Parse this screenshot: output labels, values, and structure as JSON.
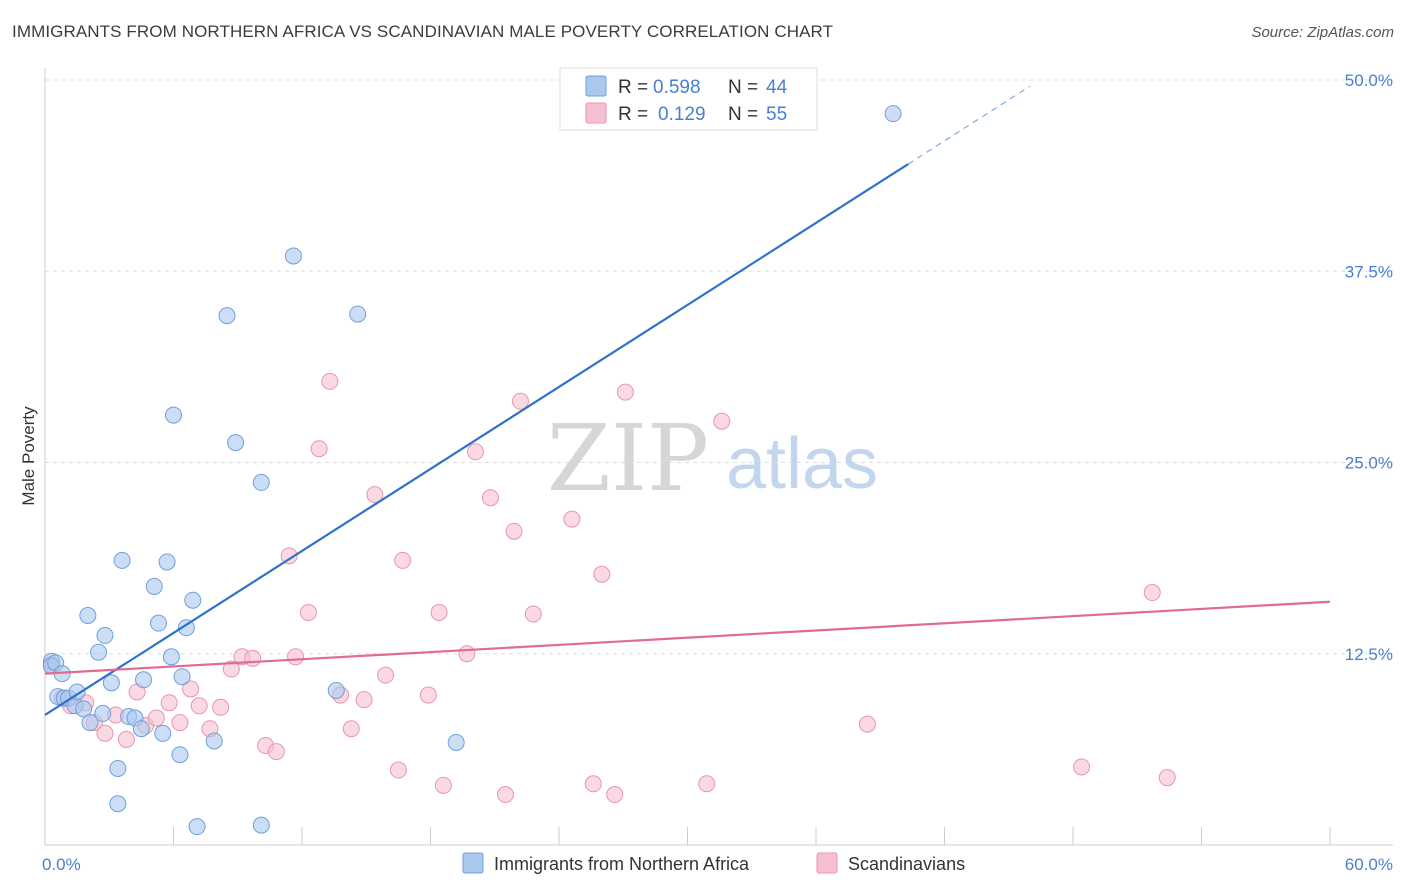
{
  "header": {
    "title": "IMMIGRANTS FROM NORTHERN AFRICA VS SCANDINAVIAN MALE POVERTY CORRELATION CHART",
    "source": "Source: ZipAtlas.com"
  },
  "watermark": {
    "zip": "ZIP",
    "atlas": "atlas"
  },
  "colors": {
    "blue_fill": "#aac8ee",
    "blue_stroke": "#6fa0da",
    "blue_line": "#2f72c9",
    "pink_fill": "#f6c0d0",
    "pink_stroke": "#e896b0",
    "pink_line": "#e06b93",
    "axis_text": "#4a7fce",
    "grid": "#dddddd"
  },
  "legend_top": {
    "rows": [
      {
        "r_label": "R =",
        "r_value": "0.598",
        "n_label": "N =",
        "n_value": "44"
      },
      {
        "r_label": "R =",
        "r_value": "0.129",
        "n_label": "N =",
        "n_value": "55"
      }
    ]
  },
  "legend_bottom": {
    "items": [
      {
        "label": "Immigrants from Northern Africa"
      },
      {
        "label": "Scandinavians"
      }
    ]
  },
  "chart_data": {
    "type": "scatter",
    "title": "IMMIGRANTS FROM NORTHERN AFRICA VS SCANDINAVIAN MALE POVERTY CORRELATION CHART",
    "xlabel": "",
    "ylabel": "Male Poverty",
    "xlim": [
      0,
      60
    ],
    "ylim": [
      0,
      50
    ],
    "x_tick_labels": [
      "0.0%",
      "60.0%"
    ],
    "y_ticks": [
      12.5,
      25.0,
      37.5,
      50.0
    ],
    "y_tick_labels": [
      "12.5%",
      "25.0%",
      "37.5%",
      "50.0%"
    ],
    "grid": true,
    "series": [
      {
        "name": "Immigrants from Northern Africa",
        "stats": {
          "R": 0.598,
          "N": 44
        },
        "trend": {
          "x0": 0,
          "y0": 8.5,
          "x1": 40.3,
          "y1": 44.5,
          "dashed_to_x": 46.0,
          "dashed_to_y": 49.6
        },
        "points": [
          [
            0.3,
            12.0
          ],
          [
            0.3,
            11.7
          ],
          [
            0.5,
            11.9
          ],
          [
            0.8,
            11.2
          ],
          [
            0.6,
            9.7
          ],
          [
            0.9,
            9.6
          ],
          [
            1.1,
            9.6
          ],
          [
            1.4,
            9.1
          ],
          [
            1.5,
            10.0
          ],
          [
            1.8,
            8.9
          ],
          [
            2.1,
            8.0
          ],
          [
            2.7,
            8.6
          ],
          [
            2.0,
            15.0
          ],
          [
            2.5,
            12.6
          ],
          [
            2.8,
            13.7
          ],
          [
            3.1,
            10.6
          ],
          [
            3.6,
            18.6
          ],
          [
            3.4,
            5.0
          ],
          [
            3.4,
            2.7
          ],
          [
            3.9,
            8.4
          ],
          [
            4.2,
            8.3
          ],
          [
            4.5,
            7.6
          ],
          [
            4.6,
            10.8
          ],
          [
            5.1,
            16.9
          ],
          [
            5.3,
            14.5
          ],
          [
            5.5,
            7.3
          ],
          [
            5.7,
            18.5
          ],
          [
            5.9,
            12.3
          ],
          [
            6.0,
            28.1
          ],
          [
            6.3,
            5.9
          ],
          [
            6.4,
            11.0
          ],
          [
            6.6,
            14.2
          ],
          [
            6.9,
            16.0
          ],
          [
            7.1,
            1.2
          ],
          [
            7.9,
            6.8
          ],
          [
            8.5,
            34.6
          ],
          [
            8.9,
            26.3
          ],
          [
            10.1,
            23.7
          ],
          [
            10.1,
            1.3
          ],
          [
            11.6,
            38.5
          ],
          [
            13.6,
            10.1
          ],
          [
            14.6,
            34.7
          ],
          [
            19.2,
            6.7
          ],
          [
            39.6,
            47.8
          ]
        ]
      },
      {
        "name": "Scandinavians",
        "stats": {
          "R": 0.129,
          "N": 55
        },
        "trend": {
          "x0": 0,
          "y0": 11.2,
          "x1": 60,
          "y1": 15.9
        },
        "points": [
          [
            0.3,
            11.8
          ],
          [
            0.8,
            9.6
          ],
          [
            1.2,
            9.1
          ],
          [
            1.9,
            9.3
          ],
          [
            2.3,
            8.0
          ],
          [
            2.8,
            7.3
          ],
          [
            3.3,
            8.5
          ],
          [
            3.8,
            6.9
          ],
          [
            4.3,
            10.0
          ],
          [
            4.7,
            7.8
          ],
          [
            5.2,
            8.3
          ],
          [
            5.8,
            9.3
          ],
          [
            6.3,
            8.0
          ],
          [
            6.8,
            10.2
          ],
          [
            7.2,
            9.1
          ],
          [
            7.7,
            7.6
          ],
          [
            8.2,
            9.0
          ],
          [
            8.7,
            11.5
          ],
          [
            9.2,
            12.3
          ],
          [
            9.7,
            12.2
          ],
          [
            10.3,
            6.5
          ],
          [
            10.8,
            6.1
          ],
          [
            11.4,
            18.9
          ],
          [
            11.7,
            12.3
          ],
          [
            12.3,
            15.2
          ],
          [
            12.8,
            25.9
          ],
          [
            13.3,
            30.3
          ],
          [
            13.8,
            9.8
          ],
          [
            14.3,
            7.6
          ],
          [
            14.9,
            9.5
          ],
          [
            15.4,
            22.9
          ],
          [
            15.9,
            11.1
          ],
          [
            16.5,
            4.9
          ],
          [
            16.7,
            18.6
          ],
          [
            17.9,
            9.8
          ],
          [
            18.4,
            15.2
          ],
          [
            18.6,
            3.9
          ],
          [
            19.7,
            12.5
          ],
          [
            20.1,
            25.7
          ],
          [
            20.8,
            22.7
          ],
          [
            21.5,
            3.3
          ],
          [
            21.9,
            20.5
          ],
          [
            22.2,
            29.0
          ],
          [
            22.8,
            15.1
          ],
          [
            24.6,
            21.3
          ],
          [
            25.6,
            4.0
          ],
          [
            26.6,
            3.3
          ],
          [
            26.0,
            17.7
          ],
          [
            27.1,
            29.6
          ],
          [
            30.9,
            4.0
          ],
          [
            31.6,
            27.7
          ],
          [
            38.4,
            7.9
          ],
          [
            48.4,
            5.1
          ],
          [
            51.7,
            16.5
          ],
          [
            52.4,
            4.4
          ]
        ]
      }
    ]
  }
}
